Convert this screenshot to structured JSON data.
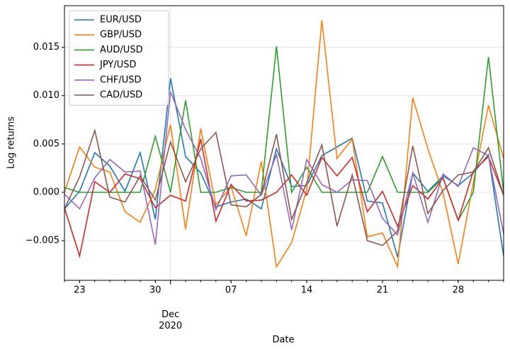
{
  "chart_data": {
    "type": "line",
    "xlabel": "Date",
    "ylabel": "Log returns",
    "categories": [
      null,
      "23",
      null,
      null,
      null,
      null,
      "30",
      "Dec 2020",
      null,
      null,
      null,
      "07",
      null,
      null,
      null,
      null,
      "14",
      null,
      null,
      null,
      null,
      "21",
      null,
      null,
      null,
      null,
      "28",
      null,
      null,
      null
    ],
    "series": [
      {
        "name": "EUR/USD",
        "color": "#1f77b4",
        "values": [
          -0.0017,
          0.0001,
          0.0041,
          0.0027,
          0.0001,
          0.0041,
          -0.0028,
          0.0118,
          0.0037,
          0.002,
          -0.0015,
          -0.001,
          -0.0007,
          -0.0017,
          0.0045,
          0.0006,
          0.0007,
          0.0038,
          0.0047,
          0.0056,
          -0.0009,
          -0.0011,
          -0.0067,
          0.002,
          0.0001,
          0.0017,
          0.0007,
          0.002,
          0.0039,
          -0.0066
        ]
      },
      {
        "name": "GBP/USD",
        "color": "#ff7f0e",
        "values": [
          0.0,
          0.0047,
          0.0026,
          0.0021,
          -0.002,
          -0.0031,
          0.0003,
          0.007,
          -0.0038,
          0.0066,
          -0.0013,
          0.0006,
          -0.0045,
          0.0032,
          -0.0077,
          -0.0052,
          0.0003,
          0.0178,
          0.0035,
          0.0055,
          -0.0046,
          -0.0042,
          -0.0077,
          0.0098,
          0.0045,
          -0.0001,
          -0.0074,
          0.001,
          0.009,
          0.0035
        ]
      },
      {
        "name": "AUD/USD",
        "color": "#2ca02c",
        "values": [
          0.0005,
          0.0,
          0.0,
          0.0,
          0.0,
          0.0,
          0.0058,
          0.0,
          0.0095,
          0.0,
          0.0,
          0.0005,
          0.0,
          0.0,
          0.0151,
          0.0,
          0.0026,
          0.0,
          0.0,
          0.0,
          0.0,
          0.0037,
          0.0,
          0.0,
          0.0,
          0.0015,
          -0.0029,
          0.0,
          0.014,
          0.0
        ]
      },
      {
        "name": "JPY/USD",
        "color": "#d62728",
        "values": [
          -0.0016,
          -0.0066,
          0.0011,
          0.0,
          0.0019,
          0.0014,
          -0.0016,
          -0.0003,
          -0.0009,
          0.0055,
          -0.003,
          0.0008,
          -0.0009,
          -0.0008,
          0.0,
          0.0018,
          -0.0003,
          0.0036,
          0.0017,
          0.0036,
          -0.002,
          0.0001,
          -0.0035,
          0.0007,
          -0.0007,
          0.0015,
          -0.0029,
          0.0022,
          0.0037,
          -0.0003
        ]
      },
      {
        "name": "CHF/USD",
        "color": "#9467bd",
        "values": [
          -0.0002,
          -0.0017,
          0.0015,
          0.0034,
          0.0021,
          0.0022,
          -0.0054,
          0.0104,
          0.0065,
          0.0035,
          -0.0018,
          0.0017,
          0.0018,
          -0.0003,
          0.0039,
          -0.0039,
          0.0034,
          0.0008,
          0.0,
          0.0013,
          0.0012,
          -0.0027,
          -0.0044,
          0.002,
          -0.0031,
          0.0019,
          0.0006,
          0.0046,
          0.0038,
          -0.0043
        ]
      },
      {
        "name": "CAD/USD",
        "color": "#8c564b",
        "values": [
          -0.0017,
          0.0016,
          0.0064,
          -0.0005,
          -0.001,
          0.0017,
          -0.0008,
          0.0052,
          0.0011,
          0.0045,
          0.0062,
          -0.0013,
          -0.0015,
          -0.0002,
          0.006,
          -0.0028,
          0.001,
          0.0049,
          -0.0035,
          0.0018,
          -0.005,
          -0.0055,
          -0.004,
          0.0048,
          -0.0022,
          0.0002,
          0.0018,
          0.0021,
          0.0046,
          -0.0003
        ]
      }
    ],
    "ylim": [
      -0.0091,
      0.0193
    ],
    "yticks": [
      {
        "value": -0.005,
        "label": "−0.005"
      },
      {
        "value": 0,
        "label": "0.000"
      },
      {
        "value": 0.005,
        "label": "0.005"
      },
      {
        "value": 0.01,
        "label": "0.010"
      },
      {
        "value": 0.015,
        "label": "0.015"
      }
    ],
    "grid": true,
    "legend": "upper left"
  }
}
